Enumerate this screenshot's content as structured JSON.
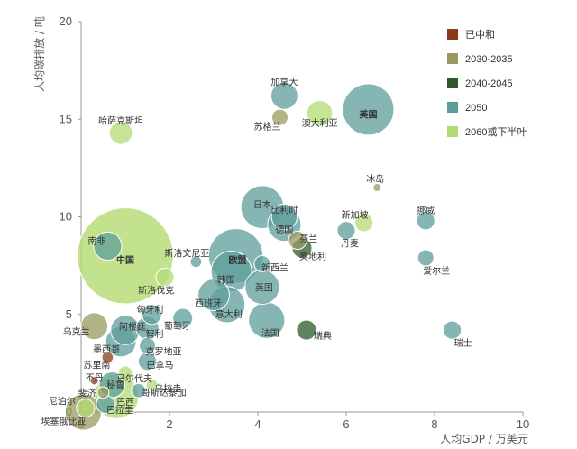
{
  "chart_data": {
    "type": "scatter",
    "xlabel": "人均GDP / 万美元",
    "ylabel": "人均碳排放 / 吨",
    "xlim": [
      0,
      10
    ],
    "ylim": [
      0,
      20
    ],
    "xticks": [
      "0",
      "2",
      "4",
      "6",
      "8",
      "10"
    ],
    "yticks": [
      "0",
      "5",
      "10",
      "15",
      "20"
    ],
    "grid": false,
    "legend_position": "top-right",
    "categories": [
      {
        "key": "neutral",
        "name": "已中和",
        "color": "#8B3A1A"
      },
      {
        "key": "c2030",
        "name": "2030-2035",
        "color": "#9A9A60"
      },
      {
        "key": "c2040",
        "name": "2040-2045",
        "color": "#2E5A2A"
      },
      {
        "key": "c2050",
        "name": "2050",
        "color": "#5E9E9A"
      },
      {
        "key": "c2060",
        "name": "2060或下半叶",
        "color": "#B3DB72"
      }
    ],
    "points": [
      {
        "name": "中国",
        "x": 1.0,
        "y": 8.0,
        "size": 140,
        "cat": "c2060",
        "bold": true
      },
      {
        "name": "欧盟",
        "x": 3.5,
        "y": 8.0,
        "size": 45,
        "cat": "c2050",
        "bold": true
      },
      {
        "name": "美国",
        "x": 6.5,
        "y": 15.5,
        "size": 40,
        "cat": "c2050",
        "bold": true
      },
      {
        "name": "加拿大",
        "x": 4.6,
        "y": 16.2,
        "size": 11,
        "cat": "c2050"
      },
      {
        "name": "苏格兰",
        "x": 4.5,
        "y": 15.1,
        "size": 4,
        "cat": "c2030"
      },
      {
        "name": "澳大利亚",
        "x": 5.4,
        "y": 15.3,
        "size": 10,
        "cat": "c2060"
      },
      {
        "name": "哈萨克斯坦",
        "x": 0.9,
        "y": 14.3,
        "size": 8,
        "cat": "c2060"
      },
      {
        "name": "冰岛",
        "x": 6.7,
        "y": 11.5,
        "size": 1,
        "cat": "c2030"
      },
      {
        "name": "挪威",
        "x": 7.8,
        "y": 9.8,
        "size": 5,
        "cat": "c2050"
      },
      {
        "name": "新加坡",
        "x": 6.4,
        "y": 9.7,
        "size": 5,
        "cat": "c2060"
      },
      {
        "name": "丹麦",
        "x": 6.0,
        "y": 9.3,
        "size": 5,
        "cat": "c2050"
      },
      {
        "name": "日本",
        "x": 4.1,
        "y": 10.5,
        "size": 28,
        "cat": "c2050"
      },
      {
        "name": "比利时",
        "x": 4.6,
        "y": 10.0,
        "size": 10,
        "cat": "c2050"
      },
      {
        "name": "德国",
        "x": 4.6,
        "y": 9.6,
        "size": 17,
        "cat": "c2050"
      },
      {
        "name": "芬兰",
        "x": 4.9,
        "y": 8.8,
        "size": 5,
        "cat": "c2030"
      },
      {
        "name": "奥地利",
        "x": 5.0,
        "y": 8.4,
        "size": 6,
        "cat": "c2040"
      },
      {
        "name": "新西兰",
        "x": 4.1,
        "y": 7.6,
        "size": 4,
        "cat": "c2050"
      },
      {
        "name": "爱尔兰",
        "x": 7.8,
        "y": 7.9,
        "size": 4,
        "cat": "c2050"
      },
      {
        "name": "南非",
        "x": 0.6,
        "y": 8.5,
        "size": 12,
        "cat": "c2050"
      },
      {
        "name": "斯洛文尼亚",
        "x": 2.6,
        "y": 7.7,
        "size": 2,
        "cat": "c2050"
      },
      {
        "name": "斯洛伐克",
        "x": 1.9,
        "y": 6.9,
        "size": 5,
        "cat": "c2060"
      },
      {
        "name": "韩国",
        "x": 3.4,
        "y": 7.2,
        "size": 25,
        "cat": "c2050"
      },
      {
        "name": "西班牙",
        "x": 3.0,
        "y": 6.0,
        "size": 15,
        "cat": "c2050"
      },
      {
        "name": "英国",
        "x": 4.1,
        "y": 6.4,
        "size": 18,
        "cat": "c2050"
      },
      {
        "name": "匈牙利",
        "x": 1.6,
        "y": 5.0,
        "size": 6,
        "cat": "c2050"
      },
      {
        "name": "葡萄牙",
        "x": 2.3,
        "y": 4.8,
        "size": 6,
        "cat": "c2050"
      },
      {
        "name": "意大利",
        "x": 3.3,
        "y": 5.5,
        "size": 20,
        "cat": "c2050"
      },
      {
        "name": "阿根廷",
        "x": 1.0,
        "y": 4.2,
        "size": 13,
        "cat": "c2050"
      },
      {
        "name": "智利",
        "x": 1.5,
        "y": 4.3,
        "size": 8,
        "cat": "c2050"
      },
      {
        "name": "瑞典",
        "x": 5.1,
        "y": 4.2,
        "size": 6,
        "cat": "c2040"
      },
      {
        "name": "法国",
        "x": 4.2,
        "y": 4.7,
        "size": 20,
        "cat": "c2050"
      },
      {
        "name": "瑞士",
        "x": 8.4,
        "y": 4.2,
        "size": 5,
        "cat": "c2050"
      },
      {
        "name": "乌克兰",
        "x": 0.3,
        "y": 4.4,
        "size": 11,
        "cat": "c2030"
      },
      {
        "name": "墨西哥",
        "x": 0.9,
        "y": 3.6,
        "size": 14,
        "cat": "c2050"
      },
      {
        "name": "克罗地亚",
        "x": 1.5,
        "y": 3.4,
        "size": 4,
        "cat": "c2050"
      },
      {
        "name": "巴拿马",
        "x": 1.5,
        "y": 2.6,
        "size": 5,
        "cat": "c2050"
      },
      {
        "name": "苏里南",
        "x": 0.6,
        "y": 2.8,
        "size": 2,
        "cat": "neutral"
      },
      {
        "name": "马尔代夫",
        "x": 1.0,
        "y": 2.0,
        "size": 3,
        "cat": "c2060"
      },
      {
        "name": "乌拉圭",
        "x": 1.6,
        "y": 1.4,
        "size": 2,
        "cat": "c2060"
      },
      {
        "name": "不丹",
        "x": 0.3,
        "y": 1.6,
        "size": 1,
        "cat": "neutral"
      },
      {
        "name": "秘鲁",
        "x": 0.7,
        "y": 1.4,
        "size": 10,
        "cat": "c2050"
      },
      {
        "name": "斐济",
        "x": 0.5,
        "y": 1.0,
        "size": 2,
        "cat": "c2030"
      },
      {
        "name": "巴西",
        "x": 0.8,
        "y": 0.8,
        "size": 30,
        "cat": "c2060"
      },
      {
        "name": "哥斯达黎加",
        "x": 1.3,
        "y": 1.1,
        "size": 3,
        "cat": "c2050"
      },
      {
        "name": "尼泊尔",
        "x": 0.1,
        "y": 0.2,
        "size": 5,
        "cat": "c2060"
      },
      {
        "name": "巴拉圭",
        "x": 0.55,
        "y": 0.4,
        "size": 5,
        "cat": "c2050"
      },
      {
        "name": "埃塞俄比亚",
        "x": 0.05,
        "y": 0.0,
        "size": 20,
        "cat": "c2030"
      }
    ]
  }
}
